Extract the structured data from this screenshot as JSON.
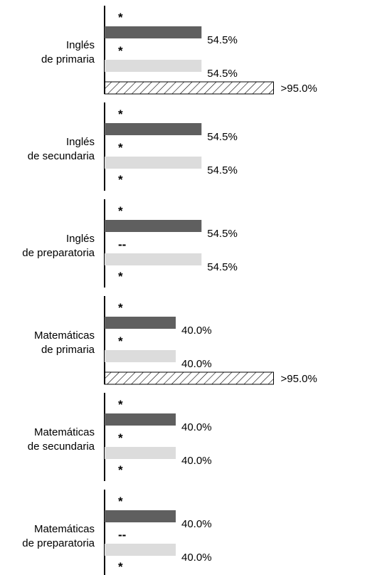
{
  "chart_data": {
    "type": "bar",
    "orientation": "horizontal",
    "xlim": [
      0,
      100
    ],
    "series": [
      {
        "color": "#5f5f5f"
      },
      {
        "color": "#dcdcdc"
      },
      {
        "color": "#ffffff",
        "pattern": "diagonal-hatch"
      }
    ],
    "groups": [
      {
        "label_lines": [
          "Inglés",
          "de primaria"
        ],
        "entries": [
          {
            "marker": "*",
            "value": 54.5,
            "label": "54.5%"
          },
          {
            "marker": "*",
            "value": 54.5,
            "label": "54.5%"
          },
          {
            "marker": "",
            "value": 95.0,
            "label": ">95.0%"
          }
        ]
      },
      {
        "label_lines": [
          "Inglés",
          "de secundaria"
        ],
        "entries": [
          {
            "marker": "*",
            "value": 54.5,
            "label": "54.5%"
          },
          {
            "marker": "*",
            "value": 54.5,
            "label": "54.5%"
          },
          {
            "marker": "*",
            "value": null,
            "label": ""
          }
        ]
      },
      {
        "label_lines": [
          "Inglés",
          "de preparatoria"
        ],
        "entries": [
          {
            "marker": "*",
            "value": 54.5,
            "label": "54.5%"
          },
          {
            "marker": "--",
            "value": 54.5,
            "label": "54.5%"
          },
          {
            "marker": "*",
            "value": null,
            "label": ""
          }
        ]
      },
      {
        "label_lines": [
          "Matemáticas",
          "de primaria"
        ],
        "entries": [
          {
            "marker": "*",
            "value": 40.0,
            "label": "40.0%"
          },
          {
            "marker": "*",
            "value": 40.0,
            "label": "40.0%"
          },
          {
            "marker": "",
            "value": 95.0,
            "label": ">95.0%"
          }
        ]
      },
      {
        "label_lines": [
          "Matemáticas",
          "de secundaria"
        ],
        "entries": [
          {
            "marker": "*",
            "value": 40.0,
            "label": "40.0%"
          },
          {
            "marker": "*",
            "value": 40.0,
            "label": "40.0%"
          },
          {
            "marker": "*",
            "value": null,
            "label": ""
          }
        ]
      },
      {
        "label_lines": [
          "Matemáticas",
          "de preparatoria"
        ],
        "entries": [
          {
            "marker": "*",
            "value": 40.0,
            "label": "40.0%"
          },
          {
            "marker": "--",
            "value": 40.0,
            "label": "40.0%"
          },
          {
            "marker": "*",
            "value": null,
            "label": ""
          }
        ]
      }
    ]
  }
}
